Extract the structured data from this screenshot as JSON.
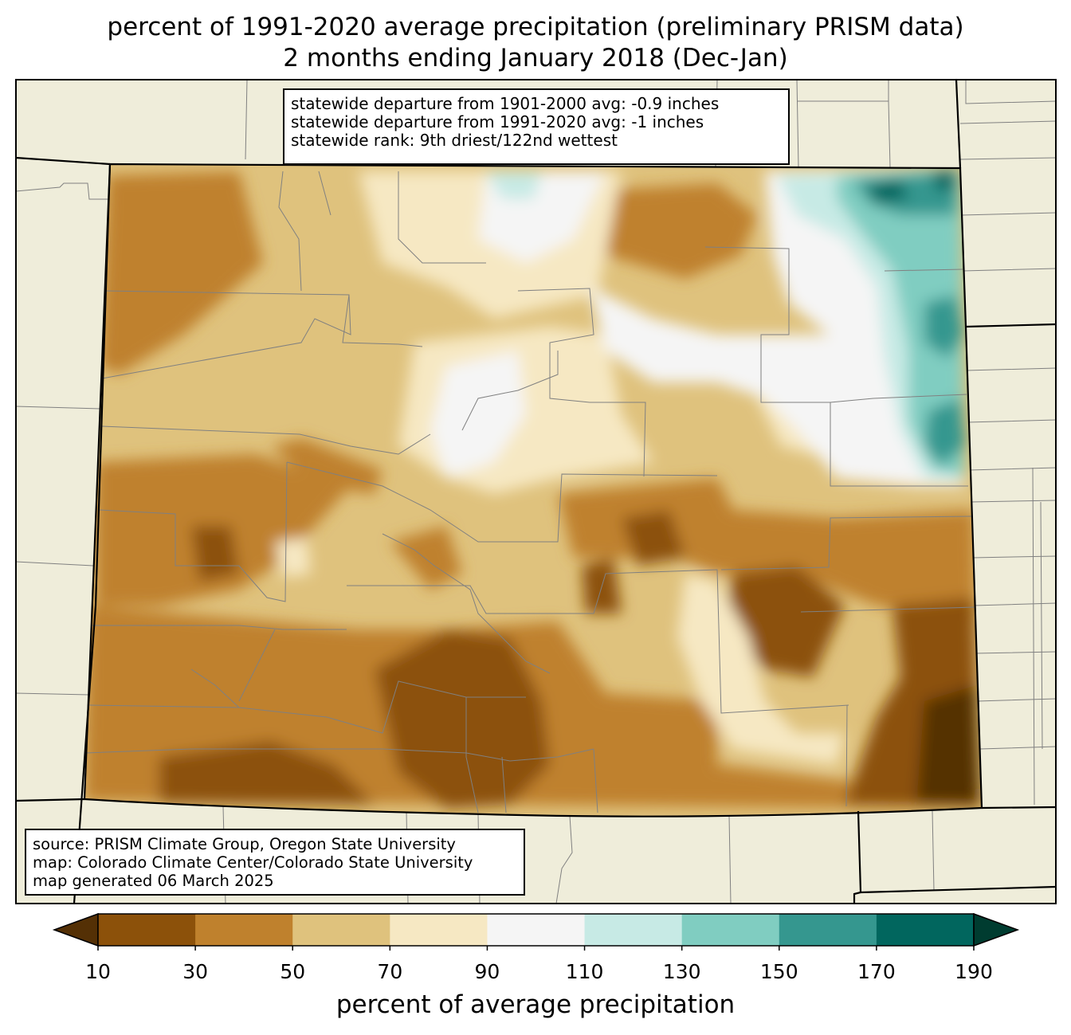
{
  "title": {
    "line1": "percent of 1991-2020 average precipitation (preliminary PRISM data)",
    "line2": "2 months ending January 2018 (Dec-Jan)"
  },
  "stats": {
    "line1": "statewide departure from 1901-2000 avg: -0.9 inches",
    "line2": "statewide departure from 1991-2020 avg: -1 inches",
    "line3": "statewide rank: 9th driest/122nd wettest"
  },
  "credits": {
    "line1": "source: PRISM Climate Group, Oregon State University",
    "line2": "map: Colorado Climate Center/Colorado State University",
    "line3": "map generated 06 March 2025"
  },
  "colorbar": {
    "label": "percent of average precipitation",
    "ticks": [
      "10",
      "30",
      "50",
      "70",
      "90",
      "110",
      "130",
      "150",
      "170",
      "190"
    ],
    "colors": [
      "#543005",
      "#8c510a",
      "#bf812d",
      "#dfc27d",
      "#f6e8c3",
      "#f5f5f5",
      "#c7eae5",
      "#80cdc1",
      "#35978f",
      "#01665e",
      "#003c30"
    ]
  },
  "colors": {
    "land": "#efedda",
    "state_border": "#000000",
    "county_border": "#808080"
  }
}
